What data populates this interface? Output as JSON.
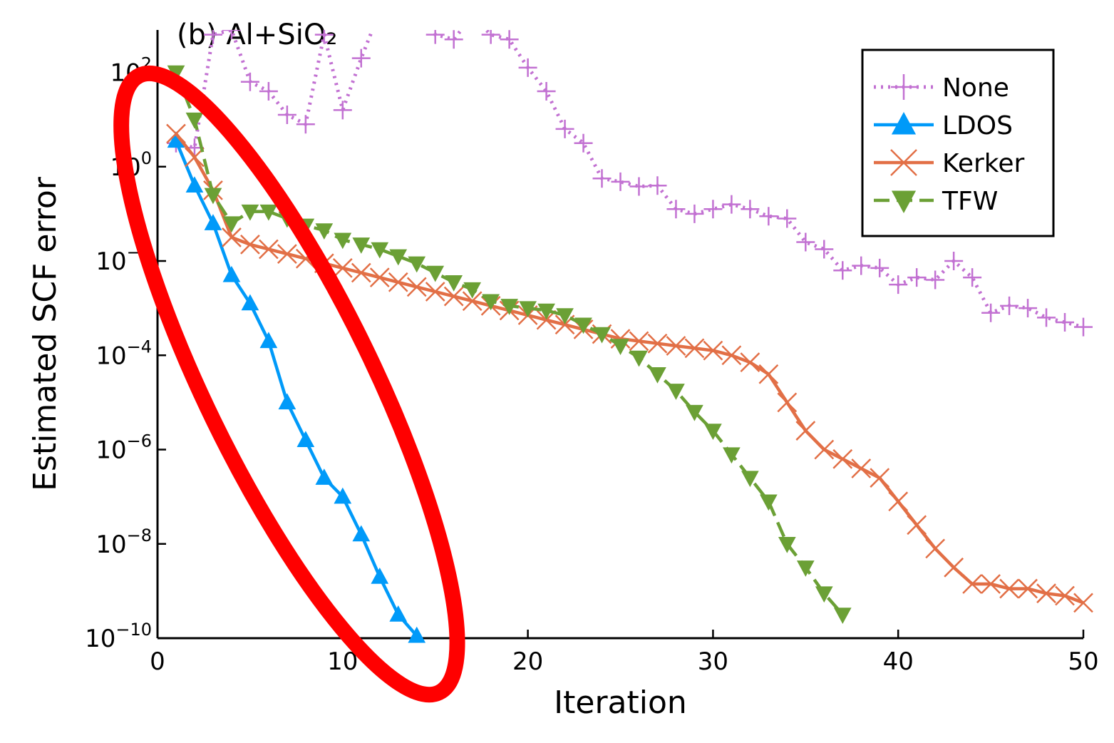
{
  "chart_data": {
    "type": "line",
    "title": "(b) Al+SiO₂",
    "xlabel": "Iteration",
    "ylabel": "Estimated SCF error",
    "xlim": [
      0,
      50
    ],
    "ylim_log10": [
      -10,
      2.9
    ],
    "yscale": "log",
    "grid": false,
    "legend_position": "top-right",
    "x_ticks": [
      {
        "value": 0,
        "label": "0"
      },
      {
        "value": 10,
        "label": "10"
      },
      {
        "value": 20,
        "label": "20"
      },
      {
        "value": 30,
        "label": "30"
      },
      {
        "value": 40,
        "label": "40"
      },
      {
        "value": 50,
        "label": "50"
      }
    ],
    "y_ticks": [
      {
        "exp": 2,
        "base": "10",
        "sup": "2"
      },
      {
        "exp": 0,
        "base": "10",
        "sup": "0"
      },
      {
        "exp": -2,
        "base": "10",
        "sup": "−2"
      },
      {
        "exp": -4,
        "base": "10",
        "sup": "−4"
      },
      {
        "exp": -6,
        "base": "10",
        "sup": "−6"
      },
      {
        "exp": -8,
        "base": "10",
        "sup": "−8"
      },
      {
        "exp": -10,
        "base": "10",
        "sup": "−10"
      }
    ],
    "series": [
      {
        "name": "None",
        "color": "#c271d2",
        "line_style": "dotted",
        "marker": "cross",
        "x": [
          1,
          2,
          3,
          4,
          5,
          6,
          7,
          8,
          9,
          10,
          11,
          12,
          13,
          14,
          15,
          16,
          17,
          18,
          19,
          20,
          21,
          22,
          23,
          24,
          25,
          26,
          27,
          28,
          29,
          30,
          31,
          32,
          33,
          34,
          35,
          36,
          37,
          38,
          39,
          40,
          41,
          42,
          43,
          44,
          45,
          46,
          47,
          48,
          49,
          50
        ],
        "log10_y": [
          0.5,
          0.4,
          2.8,
          2.9,
          1.8,
          1.6,
          1.1,
          0.9,
          2.8,
          1.2,
          2.3,
          3.3,
          3.5,
          3.6,
          2.8,
          2.7,
          3.2,
          2.8,
          2.7,
          2.1,
          1.6,
          0.8,
          0.5,
          -0.25,
          -0.32,
          -0.42,
          -0.4,
          -0.9,
          -1.0,
          -0.9,
          -0.8,
          -0.9,
          -1.05,
          -1.1,
          -1.6,
          -1.75,
          -2.2,
          -2.1,
          -2.15,
          -2.5,
          -2.35,
          -2.4,
          -2.0,
          -2.35,
          -3.1,
          -2.95,
          -3.0,
          -3.2,
          -3.3,
          -3.4
        ]
      },
      {
        "name": "LDOS",
        "color": "#009af9",
        "line_style": "solid",
        "marker": "triangle-up",
        "x": [
          1,
          2,
          3,
          4,
          5,
          6,
          7,
          8,
          9,
          10,
          11,
          12,
          13,
          14
        ],
        "log10_y": [
          0.55,
          -0.4,
          -1.2,
          -2.3,
          -2.9,
          -3.7,
          -5.0,
          -5.8,
          -6.6,
          -7.0,
          -7.8,
          -8.7,
          -9.5,
          -9.95
        ]
      },
      {
        "name": "Kerker",
        "color": "#e26f46",
        "line_style": "solid",
        "marker": "x-cross",
        "x": [
          1,
          2,
          3,
          4,
          5,
          6,
          7,
          8,
          9,
          10,
          11,
          12,
          13,
          14,
          15,
          16,
          17,
          18,
          19,
          20,
          21,
          22,
          23,
          24,
          25,
          26,
          27,
          28,
          29,
          30,
          31,
          32,
          33,
          34,
          35,
          36,
          37,
          38,
          39,
          40,
          41,
          42,
          43,
          44,
          45,
          46,
          47,
          48,
          49,
          50
        ],
        "log10_y": [
          0.7,
          0.2,
          -0.5,
          -1.5,
          -1.65,
          -1.75,
          -1.85,
          -1.95,
          -2.05,
          -2.15,
          -2.25,
          -2.35,
          -2.45,
          -2.55,
          -2.65,
          -2.75,
          -2.85,
          -2.95,
          -3.05,
          -3.15,
          -3.25,
          -3.35,
          -3.45,
          -3.55,
          -3.65,
          -3.7,
          -3.75,
          -3.8,
          -3.85,
          -3.9,
          -4.0,
          -4.15,
          -4.4,
          -5.0,
          -5.6,
          -6.0,
          -6.2,
          -6.4,
          -6.6,
          -7.1,
          -7.6,
          -8.1,
          -8.5,
          -8.85,
          -8.85,
          -8.95,
          -8.95,
          -9.05,
          -9.1,
          -9.25
        ]
      },
      {
        "name": "TFW",
        "color": "#6ba035",
        "line_style": "dashed",
        "marker": "triangle-down",
        "x": [
          1,
          2,
          3,
          4,
          5,
          6,
          7,
          8,
          9,
          10,
          11,
          12,
          13,
          14,
          15,
          16,
          17,
          18,
          19,
          20,
          21,
          22,
          23,
          24,
          25,
          26,
          27,
          28,
          29,
          30,
          31,
          32,
          33,
          34,
          35,
          36,
          37
        ],
        "log10_y": [
          2.0,
          1.0,
          -0.6,
          -1.2,
          -0.95,
          -0.95,
          -1.1,
          -1.25,
          -1.35,
          -1.55,
          -1.65,
          -1.75,
          -1.9,
          -2.05,
          -2.25,
          -2.45,
          -2.6,
          -2.85,
          -2.95,
          -3.0,
          -3.05,
          -3.15,
          -3.35,
          -3.55,
          -3.8,
          -4.05,
          -4.4,
          -4.75,
          -5.2,
          -5.6,
          -6.1,
          -6.6,
          -7.1,
          -8.0,
          -8.5,
          -9.05,
          -9.5
        ]
      }
    ],
    "annotation": {
      "kind": "ellipse-highlight",
      "color": "#ff0000",
      "encloses_series": "LDOS"
    }
  }
}
